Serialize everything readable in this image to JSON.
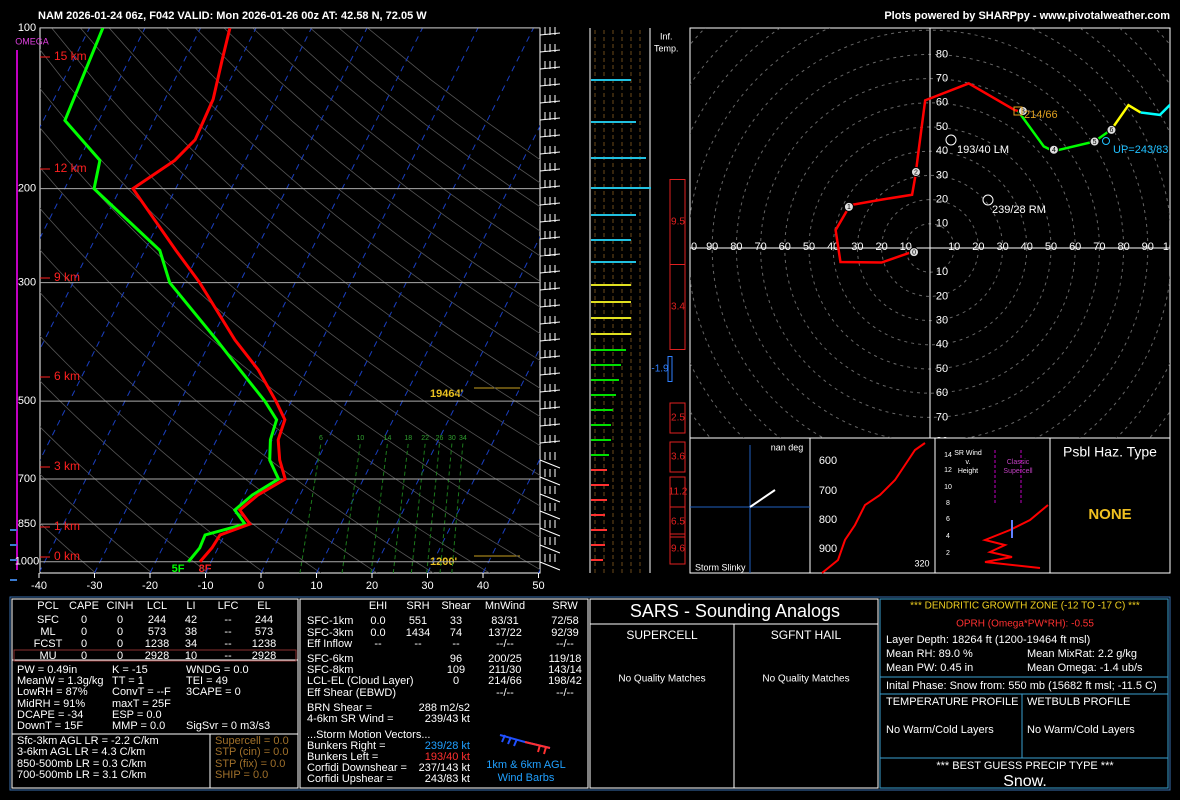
{
  "header": {
    "title": "NAM 2026-01-24 06z, F042  VALID: Mon 2026-01-26 00z  AT: 42.58 N, 72.05 W",
    "credit": "Plots powered by SHARPpy - www.pivotalweather.com"
  },
  "skewt": {
    "omega_label": "OMEGA",
    "pressure_ticks": [
      100,
      200,
      300,
      500,
      700,
      850,
      1000
    ],
    "temperature_ticks": [
      -40,
      -30,
      -20,
      -10,
      0,
      10,
      20,
      30,
      40,
      50
    ],
    "height_labels": [
      "15 km",
      "12 km",
      "9 km",
      "6 km",
      "3 km",
      "1 km",
      "0 km"
    ],
    "dgz_top": "19464'",
    "dgz_bottom": "1200'",
    "sfc_dewpoint": "5F",
    "sfc_temperature": "8F",
    "mixing_ratio_labels": [
      6,
      10,
      14,
      18,
      22,
      26,
      30,
      34
    ],
    "temperature": {
      "p": [
        1000,
        942,
        891,
        850,
        800,
        750,
        700,
        645,
        591,
        542,
        500,
        437,
        384,
        300,
        261,
        200,
        177,
        162,
        136,
        115,
        100
      ],
      "t": [
        -12.0,
        -11.1,
        -10.8,
        -6.4,
        -9.5,
        -7.6,
        -4.1,
        -6.8,
        -8.9,
        -9.5,
        -12.8,
        -18.8,
        -25.7,
        -37.2,
        -44.4,
        -57.7,
        -52.7,
        -50.9,
        -51.3,
        -53.2,
        -54.7
      ]
    },
    "dewpoint": {
      "p": [
        1000,
        942,
        891,
        850,
        800,
        750,
        700,
        645,
        591,
        542,
        500,
        437,
        384,
        300,
        261,
        200,
        177,
        149,
        100
      ],
      "t": [
        -14.1,
        -13.3,
        -13.5,
        -7.3,
        -10.4,
        -8.6,
        -5.3,
        -8.6,
        -10.3,
        -11.0,
        -14.8,
        -22.1,
        -29.0,
        -42.6,
        -47.3,
        -64.7,
        -66.2,
        -76.1,
        -77.6
      ]
    }
  },
  "inferred_temp": {
    "label": [
      "Inf.",
      "Temp."
    ],
    "values": [
      9.5,
      3.4,
      -1.9,
      2.5,
      3.6,
      11.2,
      6.5,
      9.6
    ]
  },
  "hodograph": {
    "x_labels_left": [
      100,
      90,
      80,
      70,
      60,
      50,
      40,
      30,
      20,
      10
    ],
    "x_labels_right": [
      10,
      20,
      30,
      40,
      50,
      60,
      70,
      80,
      90,
      100
    ],
    "y_labels_up": [
      80,
      70,
      60,
      50,
      40,
      30,
      20,
      10
    ],
    "y_labels_down": [
      10,
      20,
      30,
      40,
      50,
      60,
      70,
      80
    ],
    "left_mover": "193/40 LM",
    "right_mover": "239/28 RM",
    "deviant": "214/66",
    "upshear": "UP=243/83",
    "km_markers": [
      0,
      1,
      2,
      3,
      4,
      5,
      6
    ],
    "segments": [
      {
        "color": "#ff0000",
        "u": [
          -7.4,
          -20,
          -37,
          -39,
          -33,
          -20,
          -7.4,
          -6,
          -5,
          -2,
          16,
          35,
          36.4
        ],
        "v": [
          -1.6,
          -6,
          -5.8,
          7.4,
          17.7,
          20,
          22,
          30,
          38,
          61,
          68,
          57,
          56.6
        ]
      },
      {
        "color": "#00ff00",
        "u": [
          36.4,
          47,
          51,
          68,
          75
        ],
        "v": [
          56.6,
          42,
          40,
          44,
          49
        ]
      },
      {
        "color": "#ffff00",
        "u": [
          75,
          82,
          87
        ],
        "v": [
          49,
          59,
          56
        ]
      },
      {
        "color": "#00ffff",
        "u": [
          87,
          95,
          99,
          104
        ],
        "v": [
          56,
          55,
          59,
          58
        ]
      }
    ]
  },
  "slinky": {
    "direction": "nan deg",
    "pressure_labels": [
      600,
      700,
      800,
      900
    ],
    "title": "Storm Slinky",
    "corner": 320
  },
  "sr_wind": {
    "title": [
      "SR Wind",
      "v.",
      "Height"
    ],
    "classic": [
      "Classic",
      "Supercell"
    ],
    "height_ticks": [
      14,
      12,
      10,
      8,
      6,
      4,
      2
    ]
  },
  "hazard": {
    "title": "Psbl Haz. Type",
    "value": "NONE"
  },
  "parcel": {
    "headers": [
      "PCL",
      "CAPE",
      "CINH",
      "LCL",
      "LI",
      "LFC",
      "EL"
    ],
    "rows": [
      [
        "SFC",
        0,
        0,
        244,
        42,
        "--",
        244
      ],
      [
        "ML",
        0,
        0,
        573,
        38,
        "--",
        573
      ],
      [
        "FCST",
        0,
        0,
        1238,
        34,
        "--",
        1238
      ],
      [
        "MU",
        0,
        0,
        2928,
        10,
        "--",
        2928
      ]
    ]
  },
  "indices": {
    "col1": [
      "PW = 0.49in",
      "MeanW = 1.3g/kg",
      "LowRH = 87%",
      "MidRH = 91%",
      "DCAPE = -34",
      "DownT = 15F"
    ],
    "col2": [
      "K = -15",
      "TT = 1",
      "ConvT = --F",
      "maxT = 25F",
      "ESP = 0.0",
      "MMP = 0.0"
    ],
    "col3": [
      "WNDG = 0.0",
      "TEI = 49",
      "3CAPE = 0",
      "SigSvr = 0 m3/s3"
    ],
    "lapse_rates": [
      "Sfc-3km AGL LR = -2.2 C/km",
      "3-6km AGL LR = 4.3 C/km",
      "850-500mb LR = 0.3 C/km",
      "700-500mb LR = 3.1 C/km"
    ],
    "severe": [
      "Supercell = 0.0",
      "STP (cin) = 0.0",
      "STP (fix) = 0.0",
      "SHIP = 0.0"
    ]
  },
  "kinematics": {
    "headers": [
      "EHI",
      "SRH",
      "Shear",
      "MnWind",
      "SRW"
    ],
    "rows": [
      {
        "label": "SFC-1km",
        "ehi": "0.0",
        "srh": 551,
        "shear": 33,
        "mnwind": "83/31",
        "srw": "72/58"
      },
      {
        "label": "SFC-3km",
        "ehi": "0.0",
        "srh": 1434,
        "shear": 74,
        "mnwind": "137/22",
        "srw": "92/39"
      },
      {
        "label": "Eff Inflow",
        "ehi": "--",
        "srh": "--",
        "shear": "--",
        "mnwind": "--/--",
        "srw": "--/--"
      },
      {
        "label": "SFC-6km",
        "shear": 96,
        "mnwind": "200/25",
        "srw": "119/18"
      },
      {
        "label": "SFC-8km",
        "shear": 109,
        "mnwind": "211/30",
        "srw": "143/14"
      },
      {
        "label": "LCL-EL (Cloud Layer)",
        "shear": 0,
        "mnwind": "214/66",
        "srw": "198/42"
      },
      {
        "label": "Eff Shear (EBWD)",
        "mnwind": "--/--",
        "srw": "--/--"
      }
    ],
    "extra": [
      {
        "label": "BRN Shear =",
        "value": "288 m2/s2"
      },
      {
        "label": "4-6km SR Wind =",
        "value": "239/43 kt"
      }
    ],
    "storm_motion_title": "...Storm Motion Vectors...",
    "storm_motion": [
      {
        "label": "Bunkers Right =",
        "value": "239/28 kt"
      },
      {
        "label": "Bunkers Left =",
        "value": "193/40 kt"
      },
      {
        "label": "Corfidi Downshear =",
        "value": "237/143 kt"
      },
      {
        "label": "Corfidi Upshear =",
        "value": "243/83 kt"
      }
    ],
    "barb_caption": [
      "1km & 6km AGL",
      "Wind Barbs"
    ]
  },
  "sars": {
    "title": "SARS - Sounding Analogs",
    "supercell": "SUPERCELL",
    "hail": "SGFNT HAIL",
    "supercell_result": "No Quality Matches",
    "hail_result": "No Quality Matches"
  },
  "winter": {
    "dgz_title": "*** DENDRITIC GROWTH ZONE (-12 TO -17 C) ***",
    "oprh": "OPRH (Omega*PW*RH): -0.55",
    "layer_depth": "Layer Depth: 18264 ft (1200-19464 ft msl)",
    "mean_rh": "Mean RH: 89.0 %",
    "mean_mixrat": "Mean MixRat: 2.2 g/kg",
    "mean_pw": "Mean PW: 0.45 in",
    "mean_omega": "Mean Omega: -1.4 ub/s",
    "initial_phase": "Inital Phase: Snow from: 550 mb (15682 ft msl; -11.5 C)",
    "temp_profile": "TEMPERATURE PROFILE",
    "wetbulb_profile": "WETBULB PROFILE",
    "temp_result": "No Warm/Cold Layers",
    "wetbulb_result": "No Warm/Cold Layers",
    "precip_title": "*** BEST GUESS PRECIP TYPE ***",
    "precip_type": "Snow."
  }
}
